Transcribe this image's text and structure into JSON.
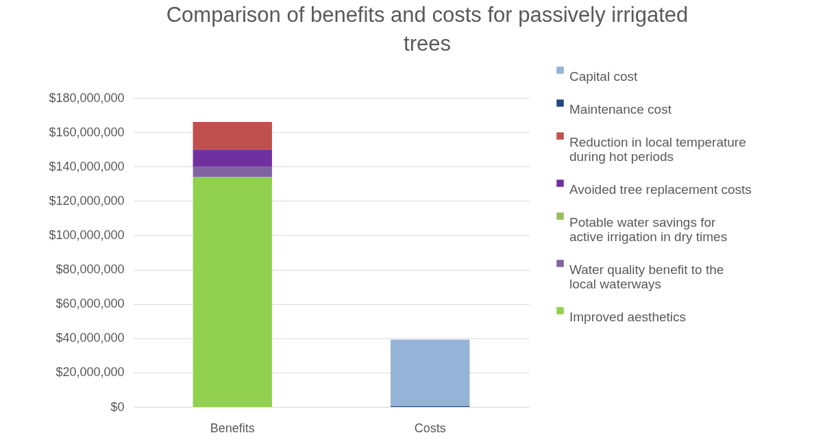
{
  "chart_data": {
    "type": "bar",
    "title": "Comparison of benefits and costs for passively irrigated trees",
    "categories": [
      "Benefits",
      "Costs"
    ],
    "stacked": true,
    "legend": "right",
    "grid": "y",
    "ylim": [
      0,
      180000000
    ],
    "yticks": [
      {
        "value": 0,
        "label": "$0"
      },
      {
        "value": 20000000,
        "label": "$20,000,000"
      },
      {
        "value": 40000000,
        "label": "$40,000,000"
      },
      {
        "value": 60000000,
        "label": "$60,000,000"
      },
      {
        "value": 80000000,
        "label": "$80,000,000"
      },
      {
        "value": 100000000,
        "label": "$100,000,000"
      },
      {
        "value": 120000000,
        "label": "$120,000,000"
      },
      {
        "value": 140000000,
        "label": "$140,000,000"
      },
      {
        "value": 160000000,
        "label": "$160,000,000"
      },
      {
        "value": 180000000,
        "label": "$180,000,000"
      }
    ],
    "series": [
      {
        "name": "Improved aesthetics",
        "color": "#92d050",
        "values": [
          134000000,
          0
        ]
      },
      {
        "name": "Water quality benefit to the local waterways",
        "color": "#8064a2",
        "values": [
          6000000,
          0
        ]
      },
      {
        "name": "Potable water savings for active irrigation in dry times",
        "color": "#9bbb59",
        "values": [
          0,
          0
        ]
      },
      {
        "name": "Avoided tree replacement costs",
        "color": "#7030a0",
        "values": [
          10000000,
          0
        ]
      },
      {
        "name": "Reduction in local temperature during hot periods",
        "color": "#c0504d",
        "values": [
          16000000,
          0
        ]
      },
      {
        "name": "Maintenance cost",
        "color": "#1f497d",
        "values": [
          0,
          400000
        ]
      },
      {
        "name": "Capital cost",
        "color": "#95b3d7",
        "values": [
          0,
          38800000
        ]
      }
    ]
  }
}
